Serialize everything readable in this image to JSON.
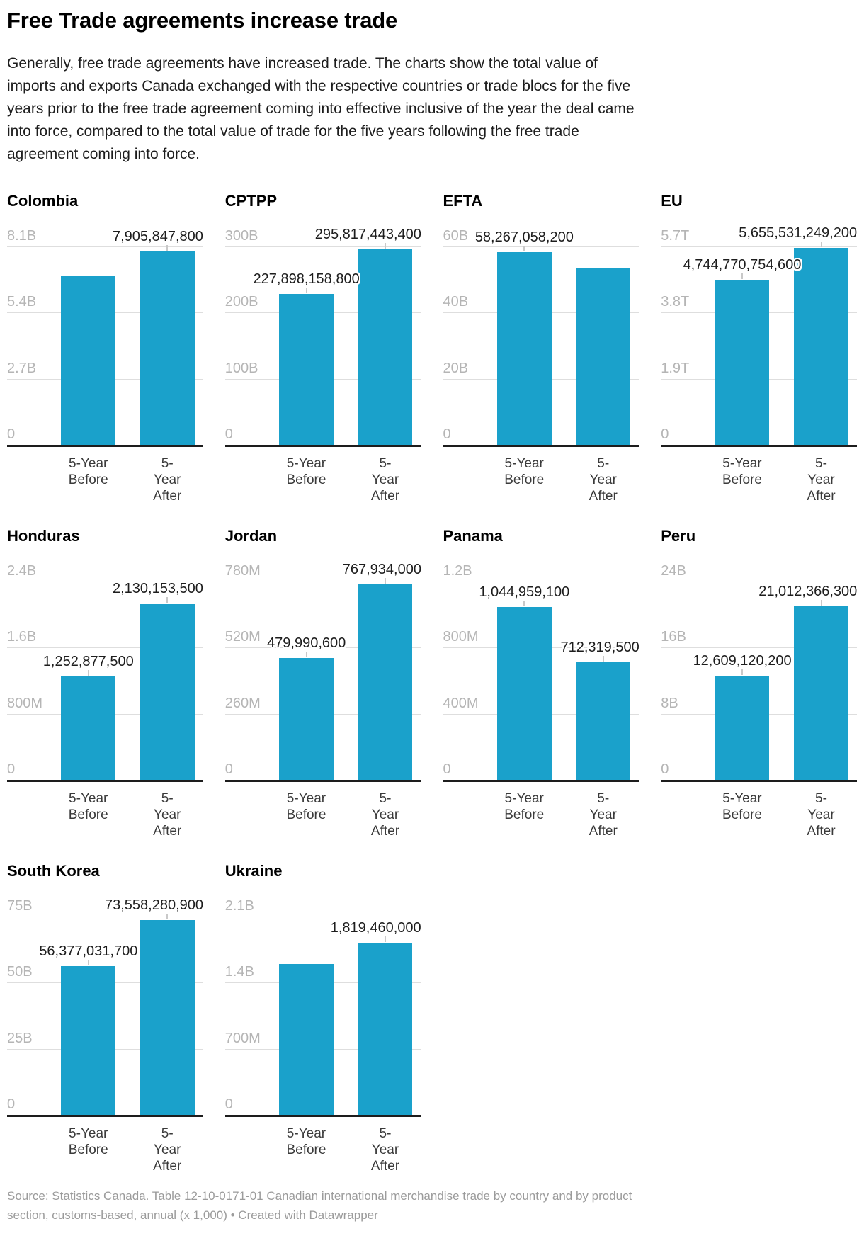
{
  "header": {
    "title": "Free Trade agreements increase trade",
    "description_lines": [
      "Generally, free trade agreements have increased trade. The charts show the total value of",
      "imports and exports Canada exchanged with the respective countries or trade blocs for the five",
      "years prior to the free trade agreement coming into effective inclusive of the year the deal came",
      "into force, compared to the total value of trade for the five years following the free trade",
      "agreement coming into force."
    ]
  },
  "chart_data": [
    {
      "type": "bar",
      "title": "Colombia",
      "categories": [
        "5-Year Before",
        "5-Year After"
      ],
      "values": [
        6885000000,
        7905847800
      ],
      "value_labels": [
        null,
        "7,905,847,800"
      ],
      "yticks": [
        "8.1B",
        "5.4B",
        "2.7B",
        "0"
      ],
      "ylim": [
        0,
        8100000000
      ]
    },
    {
      "type": "bar",
      "title": "CPTPP",
      "categories": [
        "5-Year Before",
        "5-Year After"
      ],
      "values": [
        227898158800,
        295817443400
      ],
      "value_labels": [
        "227,898,158,800",
        "295,817,443,400"
      ],
      "yticks": [
        "300B",
        "200B",
        "100B",
        "0"
      ],
      "ylim": [
        0,
        300000000000
      ]
    },
    {
      "type": "bar",
      "title": "EFTA",
      "categories": [
        "5-Year Before",
        "5-Year After"
      ],
      "values": [
        58267058200,
        53360000000
      ],
      "value_labels": [
        "58,267,058,200",
        null
      ],
      "yticks": [
        "60B",
        "40B",
        "20B",
        "0"
      ],
      "ylim": [
        0,
        60000000000
      ]
    },
    {
      "type": "bar",
      "title": "EU",
      "categories": [
        "5-Year Before",
        "5-Year After"
      ],
      "values": [
        4744770754600,
        5655531249200
      ],
      "value_labels": [
        "4,744,770,754,600",
        "5,655,531,249,200"
      ],
      "yticks": [
        "5.7T",
        "3.8T",
        "1.9T",
        "0"
      ],
      "ylim": [
        0,
        5700000000000
      ]
    },
    {
      "type": "bar",
      "title": "Honduras",
      "categories": [
        "5-Year Before",
        "5-Year After"
      ],
      "values": [
        1252877500,
        2130153500
      ],
      "value_labels": [
        "1,252,877,500",
        "2,130,153,500"
      ],
      "yticks": [
        "2.4B",
        "1.6B",
        "800M",
        "0"
      ],
      "ylim": [
        0,
        2400000000
      ]
    },
    {
      "type": "bar",
      "title": "Jordan",
      "categories": [
        "5-Year Before",
        "5-Year After"
      ],
      "values": [
        479990600,
        767934000
      ],
      "value_labels": [
        "479,990,600",
        "767,934,000"
      ],
      "yticks": [
        "780M",
        "520M",
        "260M",
        "0"
      ],
      "ylim": [
        0,
        780000000
      ]
    },
    {
      "type": "bar",
      "title": "Panama",
      "categories": [
        "5-Year Before",
        "5-Year After"
      ],
      "values": [
        1044959100,
        712319500
      ],
      "value_labels": [
        "1,044,959,100",
        "712,319,500"
      ],
      "yticks": [
        "1.2B",
        "800M",
        "400M",
        "0"
      ],
      "ylim": [
        0,
        1200000000
      ]
    },
    {
      "type": "bar",
      "title": "Peru",
      "categories": [
        "5-Year Before",
        "5-Year After"
      ],
      "values": [
        12609120200,
        21012366300
      ],
      "value_labels": [
        "12,609,120,200",
        "21,012,366,300"
      ],
      "yticks": [
        "24B",
        "16B",
        "8B",
        "0"
      ],
      "ylim": [
        0,
        24000000000
      ]
    },
    {
      "type": "bar",
      "title": "South Korea",
      "categories": [
        "5-Year Before",
        "5-Year After"
      ],
      "values": [
        56377031700,
        73558280900
      ],
      "value_labels": [
        "56,377,031,700",
        "73,558,280,900"
      ],
      "yticks": [
        "75B",
        "50B",
        "25B",
        "0"
      ],
      "ylim": [
        0,
        75000000000
      ]
    },
    {
      "type": "bar",
      "title": "Ukraine",
      "categories": [
        "5-Year Before",
        "5-Year After"
      ],
      "values": [
        1597000000,
        1819460000
      ],
      "value_labels": [
        null,
        "1,819,460,000"
      ],
      "yticks": [
        "2.1B",
        "1.4B",
        "700M",
        "0"
      ],
      "ylim": [
        0,
        2100000000
      ]
    }
  ],
  "footer": {
    "lines": [
      "Source: Statistics Canada. Table 12-10-0171-01 Canadian international merchandise trade by country and by product",
      "section, customs-based, annual (x 1,000) • "
    ],
    "attribution": "Created with Datawrapper"
  },
  "colors": {
    "bar": "#1aa1cb",
    "baseline": "#1d1d1d",
    "gridline": "#dedede",
    "axis_tick_text": "#b5b5b5",
    "value_label_text": "#1d1d1d",
    "category_label_text": "#3a3a3a",
    "footer_text": "#9b9b9b"
  }
}
